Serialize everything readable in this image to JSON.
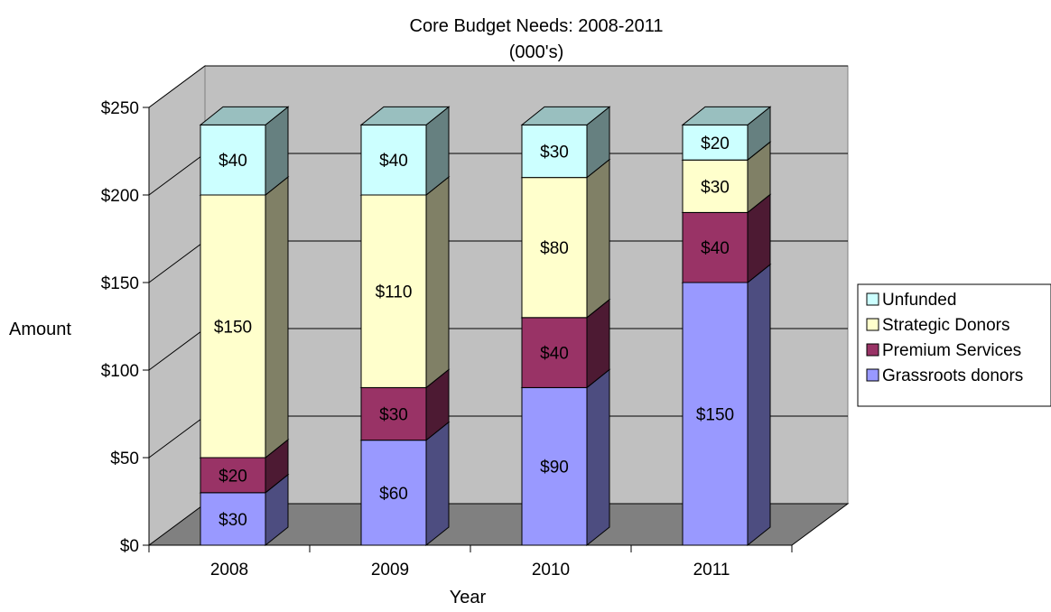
{
  "chart_data": {
    "type": "bar",
    "stacked": true,
    "three_d": true,
    "title": "Core Budget Needs:  2008-2011",
    "subtitle": "(000's)",
    "xlabel": "Year",
    "ylabel": "Amount",
    "categories": [
      "2008",
      "2009",
      "2010",
      "2011"
    ],
    "ylim": [
      0,
      250
    ],
    "yticks": [
      0,
      50,
      100,
      150,
      200,
      250
    ],
    "ytick_labels": [
      "$0",
      "$50",
      "$100",
      "$150",
      "$200",
      "$250"
    ],
    "grid": true,
    "legend_position": "right",
    "series": [
      {
        "name": "Grassroots donors",
        "values": [
          30,
          60,
          90,
          150
        ],
        "labels": [
          "$30",
          "$60",
          "$90",
          "$150"
        ],
        "color": "#9999ff"
      },
      {
        "name": "Premium Services",
        "values": [
          20,
          30,
          40,
          40
        ],
        "labels": [
          "$20",
          "$30",
          "$40",
          "$40"
        ],
        "color": "#993366"
      },
      {
        "name": "Strategic Donors",
        "values": [
          150,
          110,
          80,
          30
        ],
        "labels": [
          "$150",
          "$110",
          "$80",
          "$30"
        ],
        "color": "#ffffcc"
      },
      {
        "name": "Unfunded",
        "values": [
          40,
          40,
          30,
          20
        ],
        "labels": [
          "$40",
          "$40",
          "$30",
          "$20"
        ],
        "color": "#ccffff"
      }
    ],
    "legend_order": [
      "Unfunded",
      "Strategic Donors",
      "Premium Services",
      "Grassroots donors"
    ],
    "colors": {
      "back_wall": "#c0c0c0",
      "floor": "#808080",
      "gridline": "#000000"
    }
  }
}
